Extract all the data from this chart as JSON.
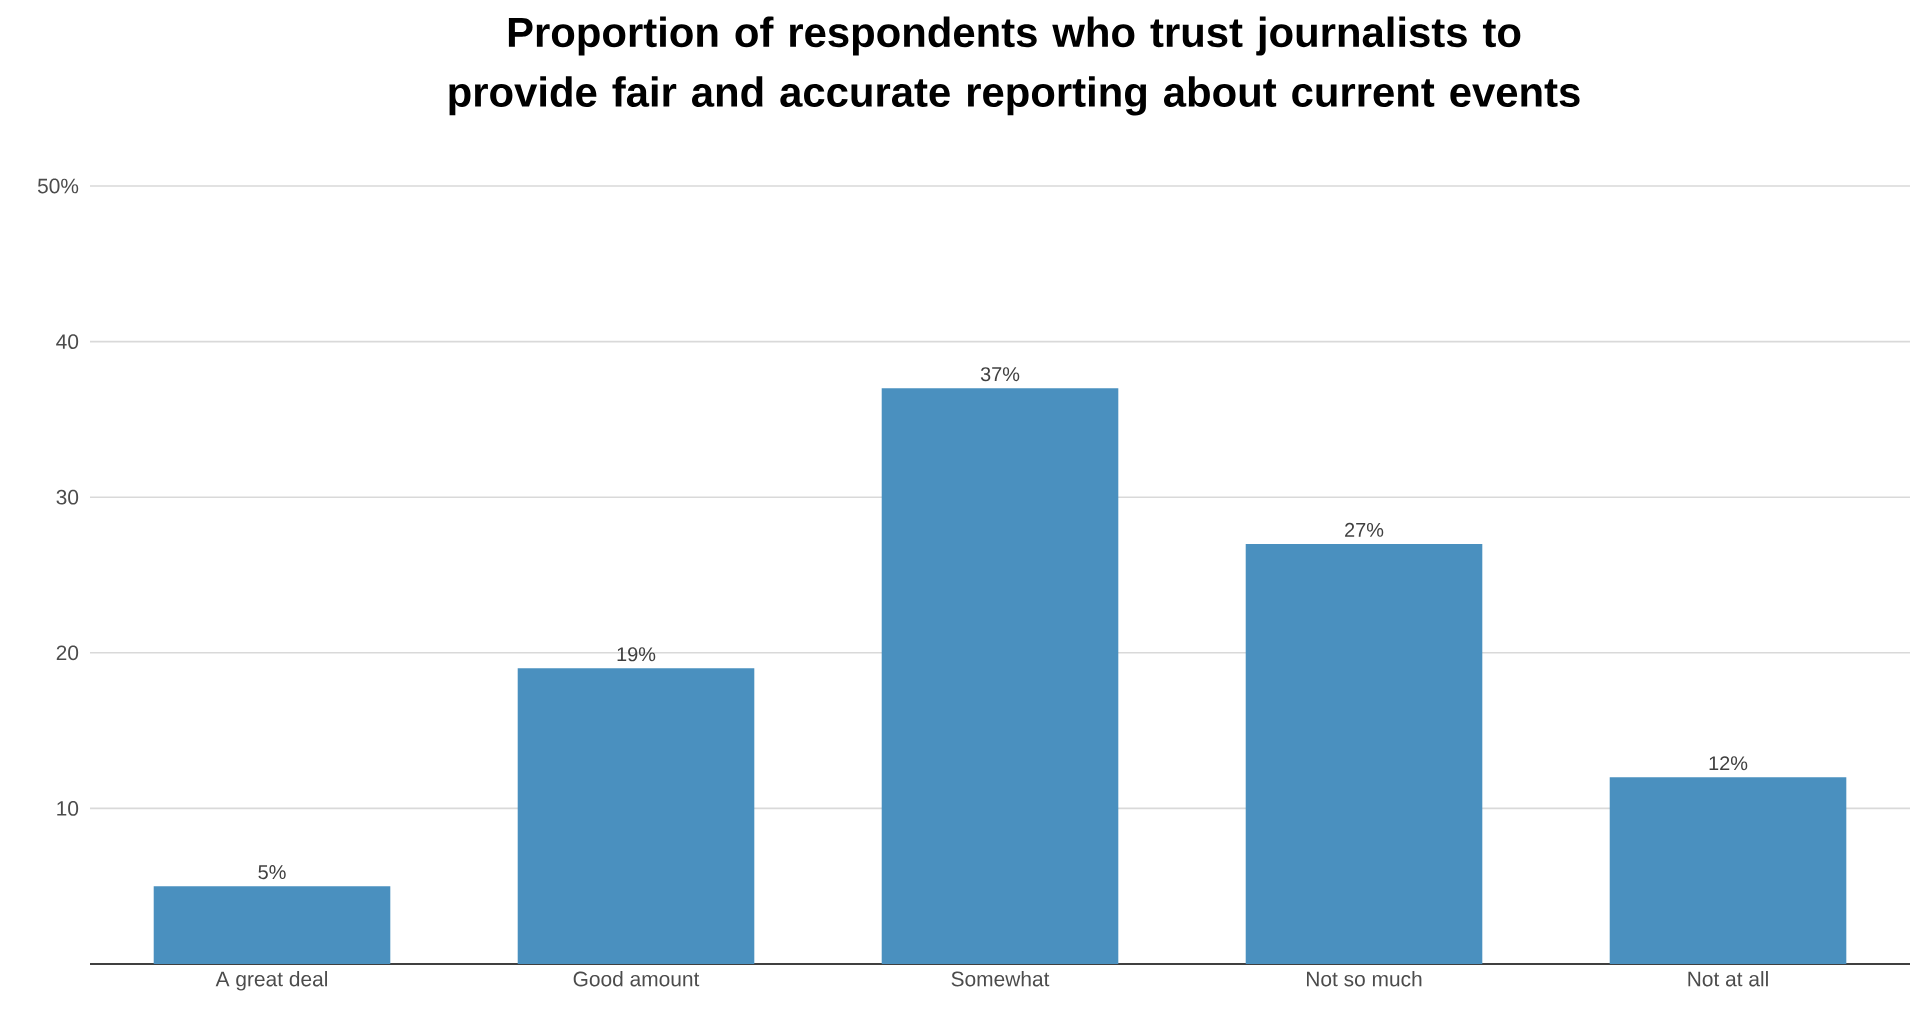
{
  "chart_data": {
    "type": "bar",
    "title": "Proportion of respondents who trust journalists to provide fair and accurate reporting about current events",
    "categories": [
      "A great deal",
      "Good amount",
      "Somewhat",
      "Not so much",
      "Not at all"
    ],
    "values": [
      5,
      19,
      37,
      27,
      12
    ],
    "value_labels": [
      "5%",
      "19%",
      "37%",
      "27%",
      "12%"
    ],
    "color": "#4a90bf",
    "ylim": [
      0,
      50
    ],
    "yticks": [
      10,
      20,
      30,
      40,
      {
        "value": 50,
        "label": "50%"
      }
    ],
    "grid": "y"
  }
}
